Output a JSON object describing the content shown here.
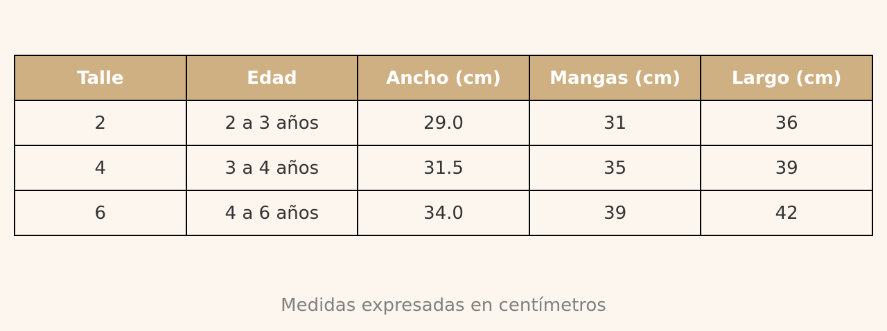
{
  "table": {
    "header": [
      "Talle",
      "Edad",
      "Ancho (cm)",
      "Mangas (cm)",
      "Largo (cm)"
    ],
    "rows": [
      [
        "2",
        "2 a 3 años",
        "29.0",
        "31",
        "36"
      ],
      [
        "4",
        "3 a 4 años",
        "31.5",
        "35",
        "39"
      ],
      [
        "6",
        "4 a 6 años",
        "34.0",
        "39",
        "42"
      ]
    ]
  },
  "caption": "Medidas expresadas en centímetros"
}
